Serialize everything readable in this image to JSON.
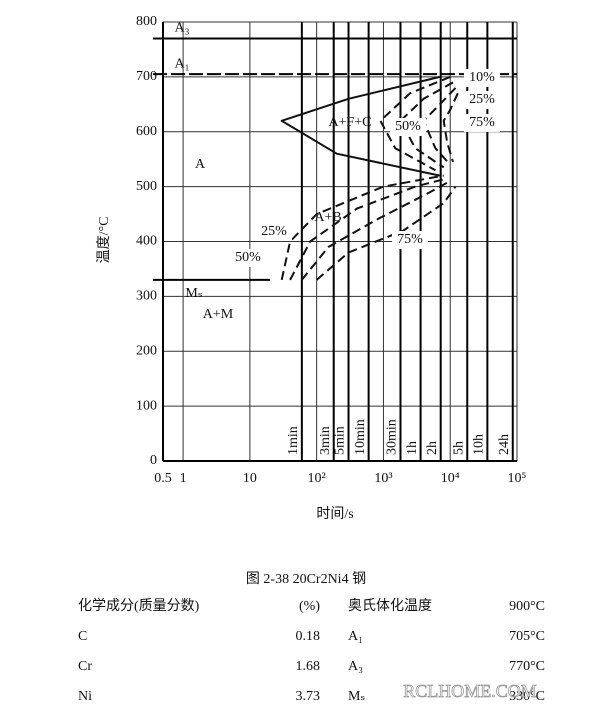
{
  "chart_data": {
    "type": "line",
    "log_x": true,
    "grid": true,
    "color": "#111111",
    "x_label": "时间/s",
    "y_label": "温度/°C",
    "xlim": [
      0.5,
      100000
    ],
    "ylim": [
      0,
      800
    ],
    "xticks": [
      0.5,
      1,
      10,
      {
        "value": 100,
        "label": "10²"
      },
      {
        "value": 1000,
        "label": "10³"
      },
      {
        "value": 10000,
        "label": "10⁴"
      },
      {
        "value": 100000,
        "label": "10⁵"
      }
    ],
    "yticks": [
      0,
      100,
      200,
      300,
      400,
      500,
      600,
      700,
      800
    ],
    "critical_lines": [
      {
        "label": "A₃",
        "value": 770
      },
      {
        "label": "A₁",
        "value": 705
      },
      {
        "label": "Mₛ",
        "value": 330
      }
    ],
    "time_marks": [
      {
        "label": "1min",
        "value": 60
      },
      {
        "label": "3min",
        "value": 180
      },
      {
        "label": "5min",
        "value": 300
      },
      {
        "label": "10min",
        "value": 600
      },
      {
        "label": "30min",
        "value": 1800
      },
      {
        "label": "1h",
        "value": 3600
      },
      {
        "label": "2h",
        "value": 7200
      },
      {
        "label": "5h",
        "value": 18000
      },
      {
        "label": "10h",
        "value": 36000
      },
      {
        "label": "24h",
        "value": 86400
      }
    ],
    "region_labels": [
      "A",
      "A+F+C",
      "A+B",
      "A+M"
    ],
    "series": [
      {
        "dash": false,
        "x": [
          7000,
          300,
          30,
          200,
          7000
        ],
        "values": [
          700,
          660,
          620,
          560,
          520
        ]
      },
      {
        "name": "10%",
        "dash": true,
        "x": [
          10000,
          2500,
          900,
          1500,
          6000
        ],
        "values": [
          700,
          670,
          620,
          570,
          530
        ]
      },
      {
        "name": "25%",
        "dash": true,
        "x": [
          11000,
          4000,
          1800,
          3000,
          8000
        ],
        "values": [
          690,
          660,
          620,
          570,
          535
        ]
      },
      {
        "name": "50%",
        "dash": true,
        "x": [
          12000,
          7000,
          4000,
          6000,
          10000
        ],
        "values": [
          680,
          650,
          620,
          570,
          540
        ]
      },
      {
        "name": "75%",
        "dash": true,
        "x": [
          13000,
          10000,
          8000,
          9000,
          11000
        ],
        "values": [
          670,
          640,
          620,
          580,
          545
        ]
      },
      {
        "dash": true,
        "x": [
          30,
          40,
          100,
          1000,
          8000
        ],
        "values": [
          330,
          400,
          450,
          500,
          520
        ]
      },
      {
        "name": "25%",
        "dash": true,
        "x": [
          40,
          80,
          400,
          3000,
          9000
        ],
        "values": [
          330,
          400,
          460,
          500,
          515
        ]
      },
      {
        "name": "50%",
        "dash": true,
        "x": [
          60,
          150,
          800,
          5000,
          10000
        ],
        "values": [
          330,
          390,
          440,
          490,
          510
        ]
      },
      {
        "name": "75%",
        "dash": true,
        "x": [
          100,
          300,
          2000,
          8000,
          12000
        ],
        "values": [
          330,
          380,
          420,
          470,
          500
        ]
      }
    ]
  },
  "caption": "图 2-38    20Cr2Ni4 钢",
  "table": {
    "header": [
      "化学成分(质量分数)",
      "(%)",
      "奥氏体化温度",
      "900°C"
    ],
    "rows": [
      [
        "C",
        "0.18",
        "A₁",
        "705°C"
      ],
      [
        "Cr",
        "1.68",
        "A₃",
        "770°C"
      ],
      [
        "Ni",
        "3.73",
        "Mₛ",
        "330°C"
      ]
    ]
  },
  "watermark": "RCLHOME.COM"
}
